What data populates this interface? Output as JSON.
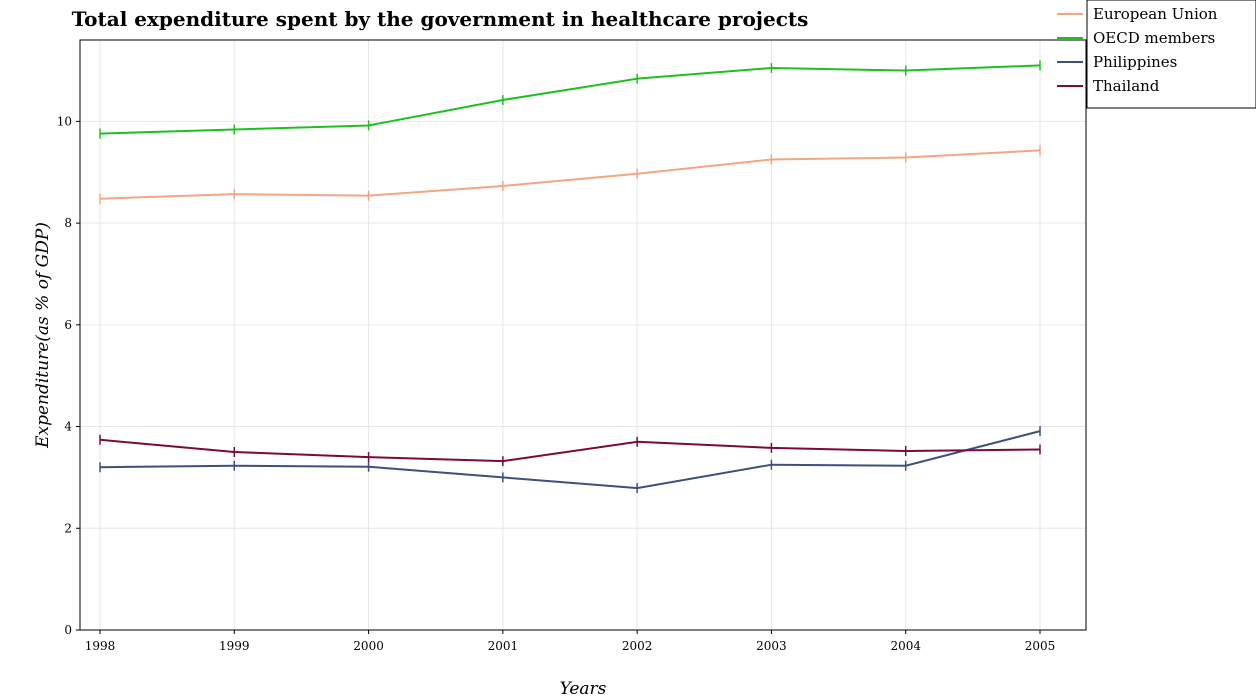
{
  "chart_data": {
    "type": "line",
    "title": "Total expenditure spent by the government in healthcare projects",
    "xlabel": "Years",
    "ylabel": "Expenditure(as % of GDP)",
    "categories": [
      "1998",
      "1999",
      "2000",
      "2001",
      "2002",
      "2003",
      "2004",
      "2005"
    ],
    "ylim": [
      0,
      11.6
    ],
    "yticks": [
      0,
      2,
      4,
      6,
      8,
      10
    ],
    "grid": true,
    "legend_position": "top-right",
    "series": [
      {
        "name": "European Union",
        "color": "#f4a582",
        "values": [
          8.48,
          8.57,
          8.54,
          8.73,
          8.97,
          9.25,
          9.29,
          9.43
        ]
      },
      {
        "name": "OECD members",
        "color": "#1fbf1f",
        "values": [
          9.76,
          9.84,
          9.92,
          10.42,
          10.84,
          11.05,
          11.0,
          11.1
        ]
      },
      {
        "name": "Philippines",
        "color": "#3f4f7f",
        "values": [
          3.2,
          3.23,
          3.21,
          3.0,
          2.79,
          3.25,
          3.23,
          3.91
        ]
      },
      {
        "name": "Thailand",
        "color": "#7a0a3c",
        "values": [
          3.74,
          3.5,
          3.4,
          3.32,
          3.7,
          3.58,
          3.52,
          3.55
        ]
      }
    ]
  }
}
